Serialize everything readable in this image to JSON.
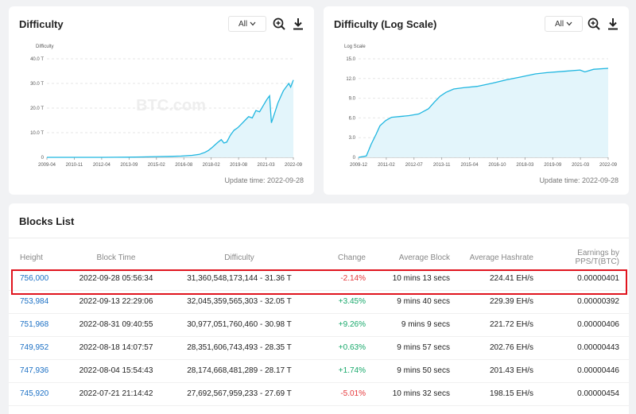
{
  "difficulty_chart": {
    "title": "Difficulty",
    "range_value": "All",
    "zoom_icon": "zoom-in-icon",
    "download_icon": "download-icon",
    "watermark": "BTC.com",
    "update_time": "Update time: 2022-09-28",
    "chart_data": {
      "type": "area",
      "title": "Difficulty",
      "ylabel": "Difficulty",
      "ylim": [
        0,
        40
      ],
      "y_ticks": [
        "0",
        "10.0 T",
        "20.0 T",
        "30.0 T",
        "40.0 T"
      ],
      "x_ticks": [
        "2009-04",
        "2010-11",
        "2012-04",
        "2013-09",
        "2015-02",
        "2016-08",
        "2018-02",
        "2019-08",
        "2021-03",
        "2022-09"
      ],
      "x_range": [
        2009.25,
        2022.75
      ],
      "series": [
        {
          "x": [
            2009.25,
            2010.9,
            2012.3,
            2013.0,
            2013.7,
            2014.5,
            2015.2,
            2016.0,
            2016.6,
            2017.2,
            2017.6,
            2017.9,
            2018.1,
            2018.3,
            2018.6,
            2018.8,
            2018.95,
            2019.1,
            2019.3,
            2019.5,
            2019.7,
            2019.9,
            2020.1,
            2020.3,
            2020.5,
            2020.7,
            2020.9,
            2021.1,
            2021.3,
            2021.45,
            2021.55,
            2021.75,
            2021.9,
            2022.05,
            2022.2,
            2022.35,
            2022.5,
            2022.6,
            2022.75
          ],
          "values": [
            0,
            0,
            0.01,
            0.02,
            0.05,
            0.15,
            0.3,
            0.4,
            0.5,
            0.8,
            1.2,
            2.0,
            2.8,
            4.0,
            6.0,
            7.2,
            5.8,
            6.2,
            9.0,
            11.0,
            12.0,
            13.5,
            15.0,
            16.5,
            16.0,
            19.0,
            18.5,
            21.0,
            23.5,
            25.0,
            14.0,
            18.5,
            22.0,
            24.5,
            27.0,
            28.5,
            30.0,
            28.5,
            31.4
          ]
        }
      ]
    }
  },
  "log_chart": {
    "title": "Difficulty (Log Scale)",
    "range_value": "All",
    "zoom_icon": "zoom-in-icon",
    "download_icon": "download-icon",
    "watermark": "BTC.com",
    "update_time": "Update time: 2022-09-28",
    "chart_data": {
      "type": "area",
      "title": "Difficulty (Log Scale)",
      "ylabel": "Log Scale",
      "ylim": [
        0,
        15
      ],
      "y_ticks": [
        "0",
        "3.0",
        "6.0",
        "9.0",
        "12.0",
        "15.0"
      ],
      "x_ticks": [
        "2009-12",
        "2011-02",
        "2012-07",
        "2013-11",
        "2015-04",
        "2016-10",
        "2018-03",
        "2019-09",
        "2021-03",
        "2022-09"
      ],
      "x_range": [
        2009.9,
        2022.75
      ],
      "series": [
        {
          "x": [
            2009.9,
            2010.3,
            2010.55,
            2010.8,
            2011.0,
            2011.3,
            2011.6,
            2012.0,
            2012.5,
            2013.0,
            2013.5,
            2013.8,
            2014.1,
            2014.4,
            2014.8,
            2015.3,
            2016.0,
            2016.8,
            2017.5,
            2018.2,
            2019.0,
            2019.6,
            2020.5,
            2021.3,
            2021.55,
            2022.0,
            2022.75
          ],
          "values": [
            0,
            0.2,
            2.0,
            3.5,
            4.8,
            5.6,
            6.1,
            6.2,
            6.35,
            6.6,
            7.4,
            8.4,
            9.3,
            9.9,
            10.4,
            10.6,
            10.8,
            11.3,
            11.8,
            12.2,
            12.7,
            12.9,
            13.1,
            13.3,
            13.0,
            13.4,
            13.55
          ]
        }
      ]
    }
  },
  "blocks": {
    "title": "Blocks List",
    "columns": [
      "Height",
      "Block Time",
      "Difficulty",
      "Change",
      "Average Block",
      "Average Hashrate",
      "Earnings by PPS/T(BTC)"
    ],
    "rows": [
      {
        "height": "756,000",
        "time": "2022-09-28 05:56:34",
        "difficulty": "31,360,548,173,144 - 31.36 T",
        "change": "-2.14%",
        "change_dir": "neg",
        "avg_block": "10 mins 13 secs",
        "hashrate": "224.41 EH/s",
        "earnings": "0.00000401"
      },
      {
        "height": "753,984",
        "time": "2022-09-13 22:29:06",
        "difficulty": "32,045,359,565,303 - 32.05 T",
        "change": "+3.45%",
        "change_dir": "pos",
        "avg_block": "9 mins 40 secs",
        "hashrate": "229.39 EH/s",
        "earnings": "0.00000392"
      },
      {
        "height": "751,968",
        "time": "2022-08-31 09:40:55",
        "difficulty": "30,977,051,760,460 - 30.98 T",
        "change": "+9.26%",
        "change_dir": "pos",
        "avg_block": "9 mins 9 secs",
        "hashrate": "221.72 EH/s",
        "earnings": "0.00000406"
      },
      {
        "height": "749,952",
        "time": "2022-08-18 14:07:57",
        "difficulty": "28,351,606,743,493 - 28.35 T",
        "change": "+0.63%",
        "change_dir": "pos",
        "avg_block": "9 mins 57 secs",
        "hashrate": "202.76 EH/s",
        "earnings": "0.00000443"
      },
      {
        "height": "747,936",
        "time": "2022-08-04 15:54:43",
        "difficulty": "28,174,668,481,289 - 28.17 T",
        "change": "+1.74%",
        "change_dir": "pos",
        "avg_block": "9 mins 50 secs",
        "hashrate": "201.43 EH/s",
        "earnings": "0.00000446"
      },
      {
        "height": "745,920",
        "time": "2022-07-21 21:14:42",
        "difficulty": "27,692,567,959,233 - 27.69 T",
        "change": "-5.01%",
        "change_dir": "neg",
        "avg_block": "10 mins 32 secs",
        "hashrate": "198.15 EH/s",
        "earnings": "0.00000454"
      }
    ]
  },
  "colors": {
    "line": "#1fb6e0",
    "fill": "#e3f5fb",
    "negative": "#e5373a",
    "positive": "#16a86a",
    "link": "#1a6fc4",
    "highlight": "#e0141e"
  }
}
